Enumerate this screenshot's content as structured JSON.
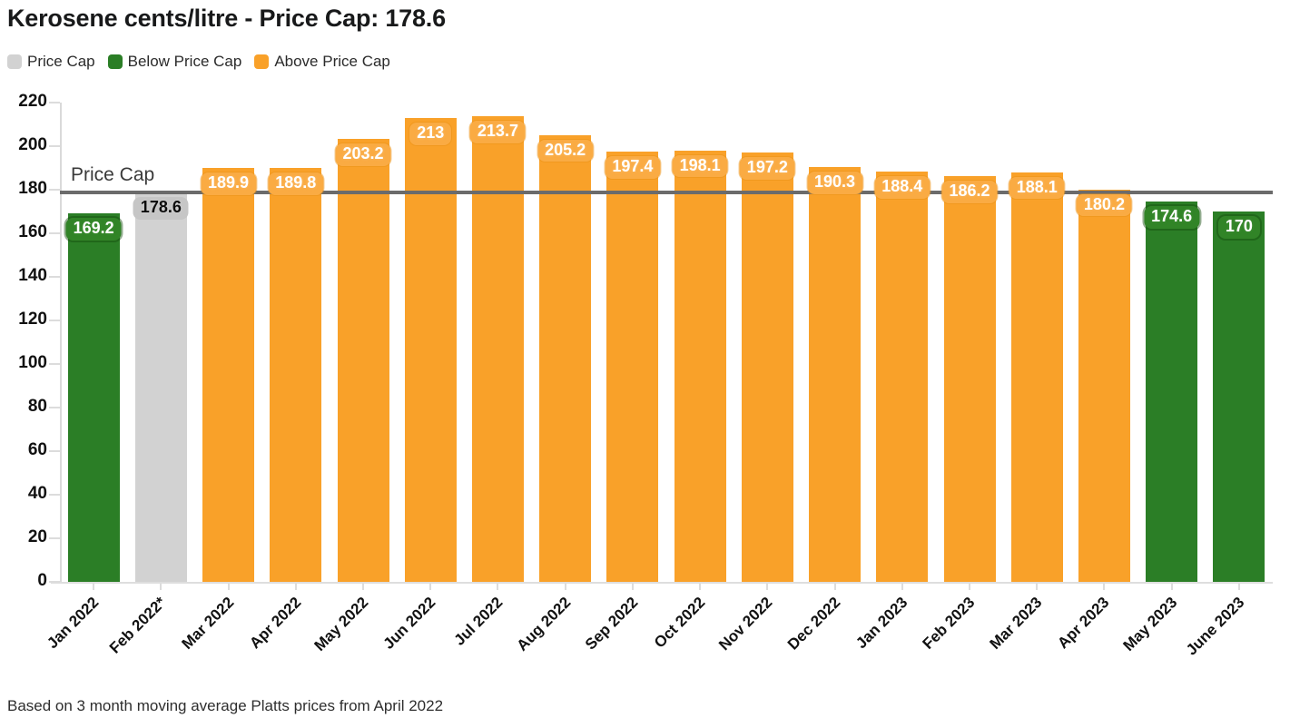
{
  "title": "Kerosene cents/litre - Price Cap: 178.6",
  "legend": {
    "items": [
      {
        "key": "cap",
        "label": "Price Cap",
        "color": "#d2d2d2"
      },
      {
        "key": "below",
        "label": "Below Price Cap",
        "color": "#2b7e26"
      },
      {
        "key": "above",
        "label": "Above Price Cap",
        "color": "#f9a129"
      }
    ]
  },
  "footer": "Based on 3 month moving average Platts prices from April 2022",
  "chart_data": {
    "type": "bar",
    "title": "Kerosene cents/litre - Price Cap: 178.6",
    "categories": [
      "Jan 2022",
      "Feb 2022*",
      "Mar 2022",
      "Apr 2022",
      "May 2022",
      "Jun 2022",
      "Jul 2022",
      "Aug 2022",
      "Sep 2022",
      "Oct 2022",
      "Nov 2022",
      "Dec 2022",
      "Jan 2023",
      "Feb 2023",
      "Mar 2023",
      "Apr 2023",
      "May 2023",
      "June 2023"
    ],
    "values": [
      169.2,
      178.6,
      189.9,
      189.8,
      203.2,
      213,
      213.7,
      205.2,
      197.4,
      198.1,
      197.2,
      190.3,
      188.4,
      186.2,
      188.1,
      180.2,
      174.6,
      170
    ],
    "value_labels": [
      "169.2",
      "178.6",
      "189.9",
      "189.8",
      "203.2",
      "213",
      "213.7",
      "205.2",
      "197.4",
      "198.1",
      "197.2",
      "190.3",
      "188.4",
      "186.2",
      "188.1",
      "180.2",
      "174.6",
      "170"
    ],
    "statuses": [
      "below",
      "cap",
      "above",
      "above",
      "above",
      "above",
      "above",
      "above",
      "above",
      "above",
      "above",
      "above",
      "above",
      "above",
      "above",
      "above",
      "below",
      "below"
    ],
    "price_cap": {
      "value": 178.6,
      "label": "Price Cap"
    },
    "xlabel": "",
    "ylabel": "",
    "ylim": [
      0,
      220
    ],
    "ytick_step": 20,
    "grid": false,
    "legend_position": "top-left",
    "colors": {
      "cap_bar": "#d2d2d2",
      "below_bar": "#2b7e26",
      "above_bar": "#f9a129",
      "cap_line": "#6b6b6b",
      "axis": "#dcdcdc",
      "tick_text": "#111111"
    }
  }
}
